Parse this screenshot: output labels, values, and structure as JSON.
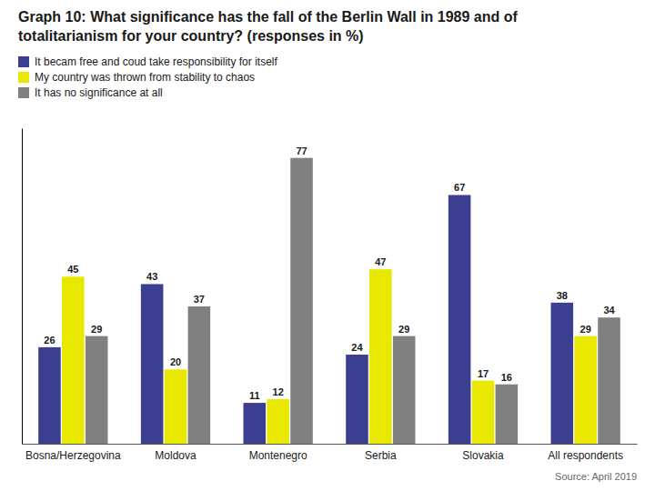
{
  "chart_data": {
    "type": "bar",
    "title": "Graph 10: What significance has the fall of the Berlin Wall in 1989 and of",
    "subtitle": "totalitarianism for your country? (responses in %)",
    "categories": [
      "Bosna/Herzegovina",
      "Moldova",
      "Montenegro",
      "Serbia",
      "Slovakia",
      "All respondents"
    ],
    "series": [
      {
        "name": "It becam free and coud take responsibility for itself",
        "color": "#3c3f8f",
        "values": [
          26,
          43,
          11,
          24,
          67,
          38
        ]
      },
      {
        "name": "My country was thrown from stability to chaos",
        "color": "#e8e800",
        "values": [
          45,
          20,
          12,
          47,
          17,
          29
        ]
      },
      {
        "name": "It has no significance at all",
        "color": "#808080",
        "values": [
          29,
          37,
          77,
          29,
          16,
          34
        ]
      }
    ],
    "ylim": [
      0,
      85
    ],
    "grid": false,
    "legend": "upper left",
    "data_labels": true,
    "tick_labels": "x",
    "annotations": [
      "Source: April 2019"
    ]
  }
}
